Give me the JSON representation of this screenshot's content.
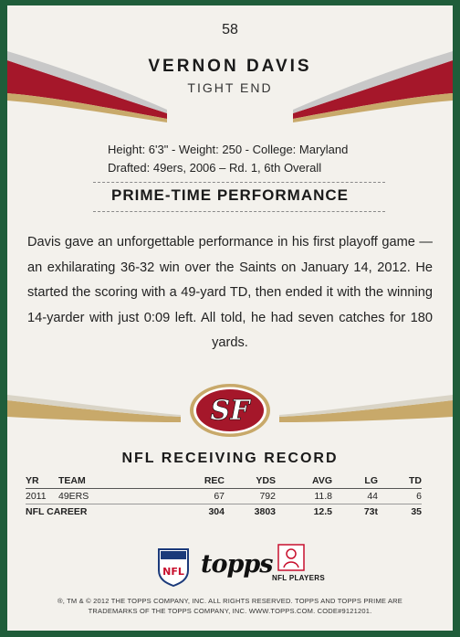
{
  "card_number": "58",
  "player": {
    "name": "VERNON DAVIS",
    "position": "TIGHT END"
  },
  "bio": {
    "line1": "Height: 6'3\" - Weight: 250 - College: Maryland",
    "line2": "Drafted: 49ers, 2006 – Rd. 1, 6th Overall"
  },
  "performance": {
    "title": "PRIME-TIME PERFORMANCE",
    "text": "Davis gave an unforgettable performance in his first playoff game — an exhilarating 36-32 win over the Saints on January 14, 2012. He started the scoring with a 49-yard TD, then ended it with the winning 14-yarder with just 0:09 left. All told, he had seven catches for 180 yards."
  },
  "team_logo_text": "SF",
  "record": {
    "title": "NFL RECEIVING RECORD",
    "headers": {
      "yr": "YR",
      "team": "TEAM",
      "rec": "REC",
      "yds": "YDS",
      "avg": "AVG",
      "lg": "LG",
      "td": "TD"
    },
    "rows": [
      {
        "yr": "2011",
        "team": "49ERS",
        "rec": "67",
        "yds": "792",
        "avg": "11.8",
        "lg": "44",
        "td": "6"
      }
    ],
    "career": {
      "label": "NFL CAREER",
      "rec": "304",
      "yds": "3803",
      "avg": "12.5",
      "lg": "73t",
      "td": "35"
    }
  },
  "brands": {
    "nfl": "NFL",
    "topps": "topps",
    "players": "NFL PLAYERS"
  },
  "legal": {
    "line1": "®, TM & © 2012 THE TOPPS COMPANY, INC. ALL RIGHTS RESERVED. TOPPS AND TOPPS PRIME ARE",
    "line2": "TRADEMARKS OF THE TOPPS COMPANY, INC. WWW.TOPPS.COM. CODE#9121201."
  },
  "colors": {
    "red": "#a5172a",
    "gold": "#c8a96a",
    "background": "#f3f1ec",
    "border": "#1f5d3a"
  }
}
